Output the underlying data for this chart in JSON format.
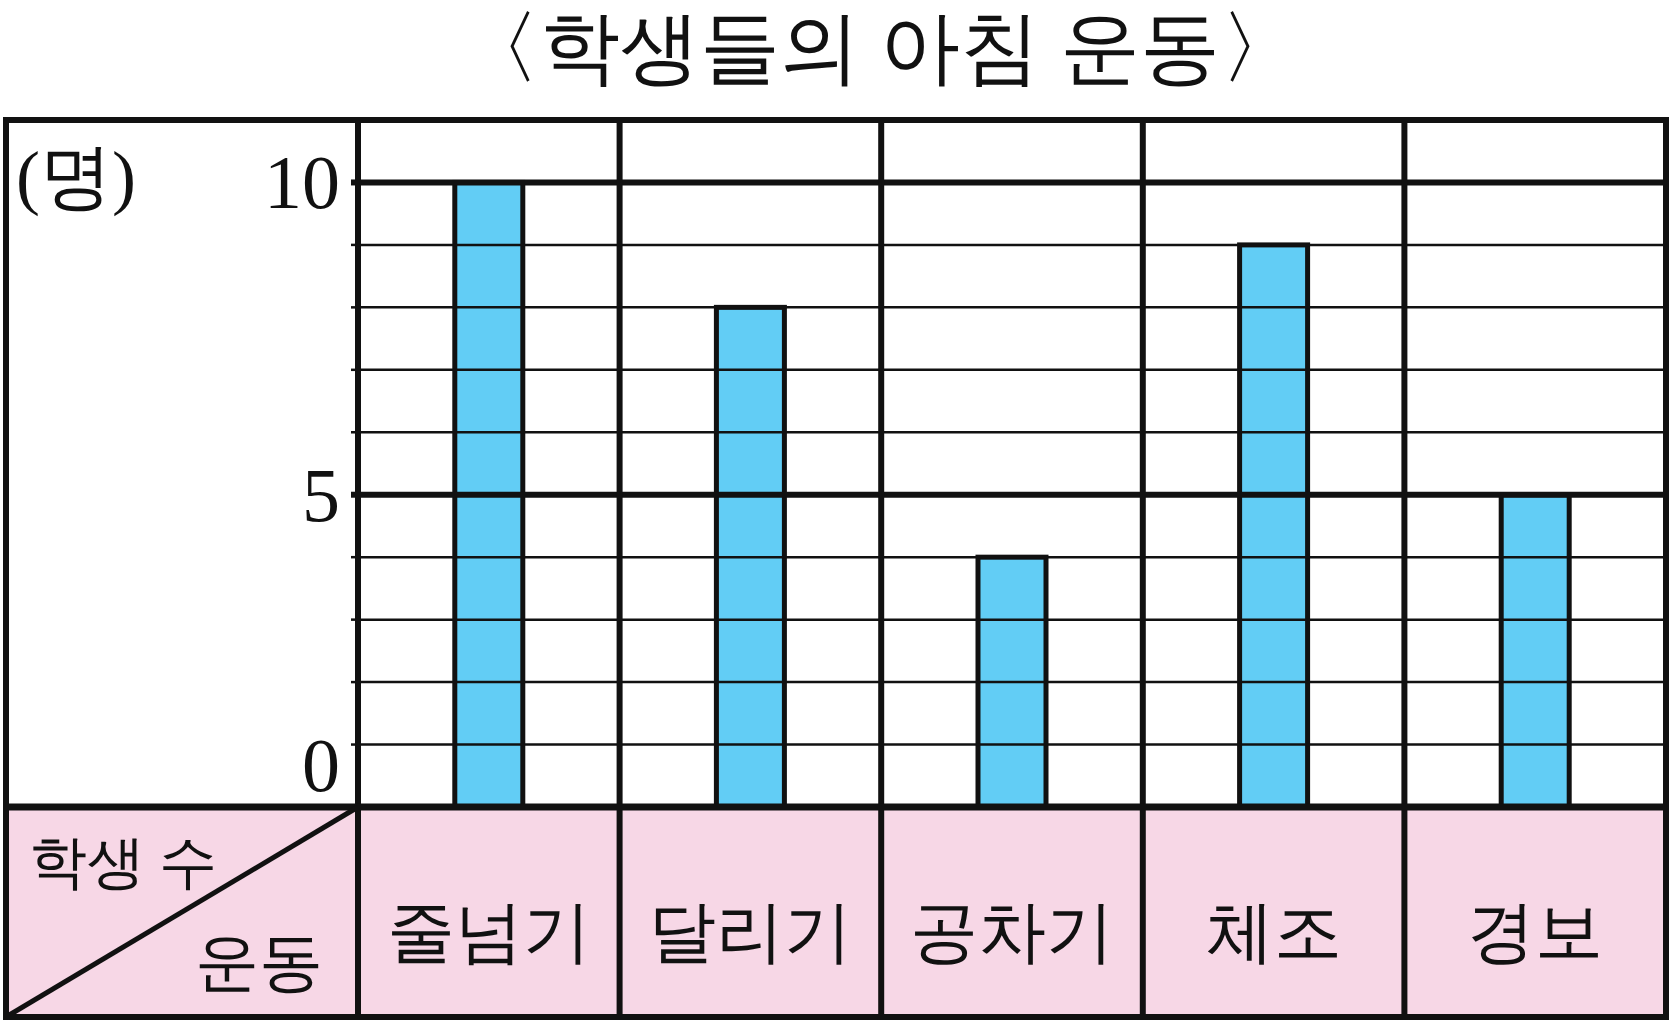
{
  "chart_data": {
    "type": "bar",
    "title": "〈학생들의 아침 운동〉",
    "xlabel": "운동",
    "ylabel": "학생 수",
    "annotations": [
      "(명)"
    ],
    "categories": [
      "줄넘기",
      "달리기",
      "공차기",
      "체조",
      "경보"
    ],
    "values": [
      10,
      8,
      4,
      9,
      5
    ],
    "color": "#62cdf5",
    "ylim": [
      0,
      11
    ],
    "yticks": [
      0,
      {
        "value": 1,
        "label": null
      },
      {
        "value": 2,
        "label": null
      },
      {
        "value": 3,
        "label": null
      },
      {
        "value": 4,
        "label": null
      },
      5,
      {
        "value": 6,
        "label": null
      },
      {
        "value": 7,
        "label": null
      },
      {
        "value": 8,
        "label": null
      },
      {
        "value": 9,
        "label": null
      },
      10
    ],
    "grid": "y"
  }
}
